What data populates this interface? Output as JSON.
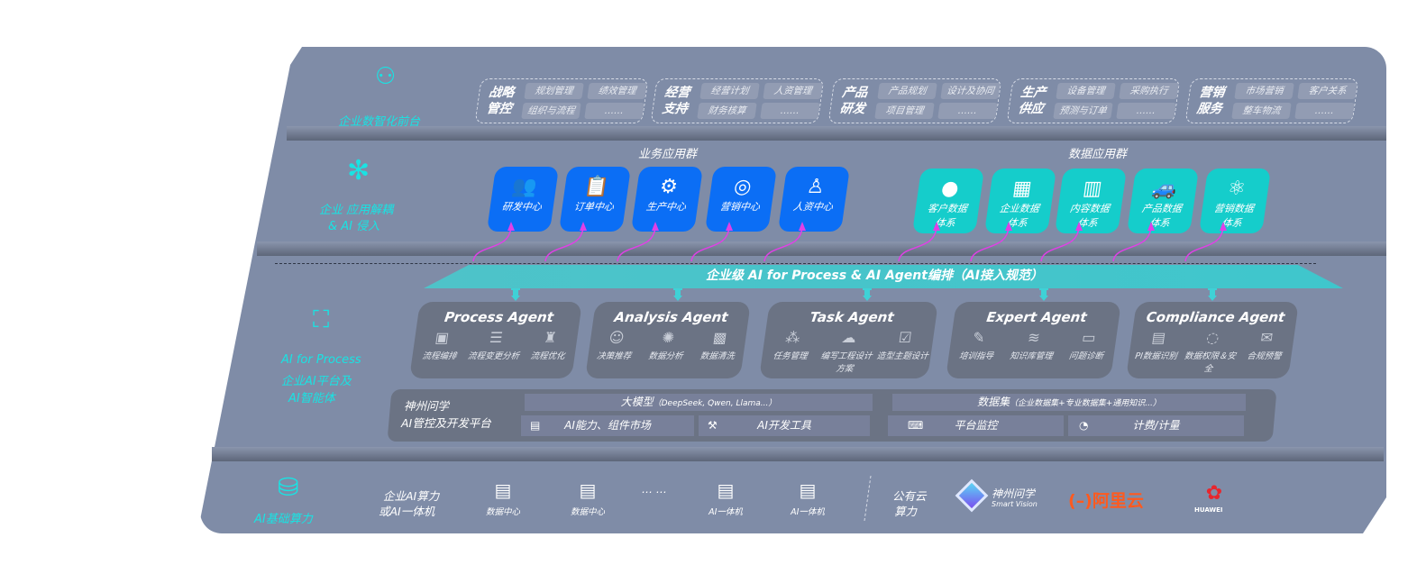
{
  "layers": {
    "front": {
      "label": "企业数智化前台",
      "icon": "brain-icon",
      "groups": [
        {
          "title": "战略管控",
          "items": [
            "规划管理",
            "绩效管理",
            "组织与流程",
            "……"
          ]
        },
        {
          "title": "经营支持",
          "items": [
            "经营计划",
            "人资管理",
            "财务核算",
            "……"
          ]
        },
        {
          "title": "产品研发",
          "items": [
            "产品规划",
            "设计及协同",
            "项目管理",
            "……"
          ]
        },
        {
          "title": "生产供应",
          "items": [
            "设备管理",
            "采购执行",
            "预测与订单",
            "……"
          ]
        },
        {
          "title": "营销服务",
          "items": [
            "市场营销",
            "客户关系",
            "整车物流",
            "……"
          ]
        }
      ]
    },
    "apps": {
      "label": "企业 应用解耦",
      "label2": "& AI 侵入",
      "icon": "molecule-icon",
      "business_title": "业务应用群",
      "business": [
        {
          "label": "研发中心",
          "icon": "users-icon"
        },
        {
          "label": "订单中心",
          "icon": "clipboard-icon"
        },
        {
          "label": "生产中心",
          "icon": "factory-icon"
        },
        {
          "label": "营销中心",
          "icon": "target-icon"
        },
        {
          "label": "人资中心",
          "icon": "person-icon"
        }
      ],
      "data_title": "数据应用群",
      "data": [
        {
          "label": "客户数据",
          "label2": "体系",
          "icon": "user-icon"
        },
        {
          "label": "企业数据",
          "label2": "体系",
          "icon": "building-icon"
        },
        {
          "label": "内容数据",
          "label2": "体系",
          "icon": "books-icon"
        },
        {
          "label": "产品数据",
          "label2": "体系",
          "icon": "car-icon"
        },
        {
          "label": "营销数据",
          "label2": "体系",
          "icon": "atom-icon"
        }
      ]
    },
    "ai": {
      "label1": "AI for Process",
      "label2": "企业AI平台及",
      "label3": "AI智能体",
      "icon": "face-scan-icon",
      "banner": "企业级 AI for Process & AI Agent编排（AI接入规范）",
      "agents": [
        {
          "title": "Process Agent",
          "items": [
            "流程编排",
            "流程变更分析",
            "流程优化"
          ]
        },
        {
          "title": "Analysis Agent",
          "items": [
            "决策推荐",
            "数据分析",
            "数据清洗"
          ]
        },
        {
          "title": "Task Agent",
          "items": [
            "任务管理",
            "编写工程设计方案",
            "造型主题设计"
          ]
        },
        {
          "title": "Expert Agent",
          "items": [
            "培训指导",
            "知识库管理",
            "问题诊断"
          ]
        },
        {
          "title": "Compliance Agent",
          "items": [
            "PI数据识别",
            "数据权限＆安全",
            "合规预警"
          ]
        }
      ],
      "platform": {
        "name1": "神州问学",
        "name2": "AI管控及开发平台",
        "model": "大模型",
        "model_note": "（DeepSeek, Qwen, Llama...）",
        "dataset": "数据集",
        "dataset_note": "（企业数据集+专业数据集+通用知识...）",
        "tools": [
          "AI能力、组件市场",
          "AI开发工具",
          "平台监控",
          "计费/计量"
        ]
      }
    },
    "infra": {
      "label": "AI基础算力",
      "icon": "database-icon",
      "private1": "企业AI算力",
      "private2": "或AI一体机",
      "servers": [
        "数据中心",
        "数据中心",
        "AI一体机",
        "AI一体机"
      ],
      "ellipsis": "… …",
      "public1": "公有云",
      "public2": "算力",
      "vendors": {
        "smartvision": "神州问学",
        "smartvision_en": "Smart Vision",
        "aliyun": "阿里云",
        "huawei": "HUAWEI"
      }
    }
  },
  "colors": {
    "panel": "#7f8ca7",
    "accent": "#19e3e3",
    "blue": "#0b6ef5",
    "teal": "#15cdcb",
    "arrow": "#e040e6"
  }
}
